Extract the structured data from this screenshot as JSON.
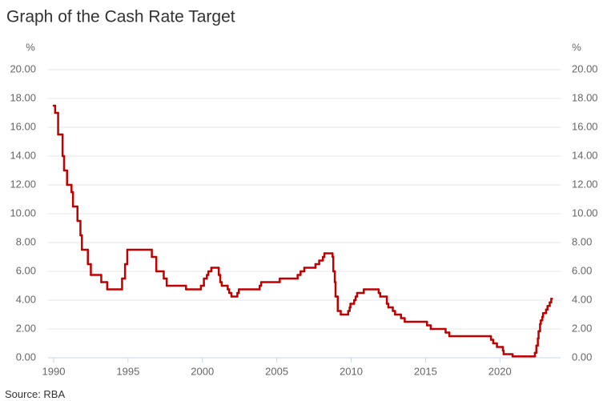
{
  "chart_data": {
    "type": "line",
    "drawstyle": "steps-post",
    "title": "Graph of the Cash Rate Target",
    "ylabel": "%",
    "y2label": "%",
    "source": "Source: RBA",
    "grid": true,
    "xlim": [
      1990,
      2023.7
    ],
    "xticks": [
      1990,
      1995,
      2000,
      2005,
      2010,
      2015,
      2020
    ],
    "ylim": [
      0,
      20
    ],
    "yticks": [
      {
        "value": 0,
        "label": "0.00"
      },
      {
        "value": 2,
        "label": "2.00"
      },
      {
        "value": 4,
        "label": "4.00"
      },
      {
        "value": 6,
        "label": "6.00"
      },
      {
        "value": 8,
        "label": "8.00"
      },
      {
        "value": 10,
        "label": "10.00"
      },
      {
        "value": 12,
        "label": "12.00"
      },
      {
        "value": 14,
        "label": "14.00"
      },
      {
        "value": 16,
        "label": "16.00"
      },
      {
        "value": 18,
        "label": "18.00"
      },
      {
        "value": 20,
        "label": "20.00"
      }
    ],
    "y2lim": [
      0,
      20
    ],
    "y2ticks": [
      {
        "value": 0,
        "label": "0.00"
      },
      {
        "value": 2,
        "label": "2.00"
      },
      {
        "value": 4,
        "label": "4.00"
      },
      {
        "value": 6,
        "label": "6.00"
      },
      {
        "value": 8,
        "label": "8.00"
      },
      {
        "value": 10,
        "label": "10.00"
      },
      {
        "value": 12,
        "label": "12.00"
      },
      {
        "value": 14,
        "label": "14.00"
      },
      {
        "value": 16,
        "label": "16.00"
      },
      {
        "value": 18,
        "label": "18.00"
      },
      {
        "value": 20,
        "label": "20.00"
      }
    ],
    "x": [
      1990.0,
      1990.1,
      1990.3,
      1990.6,
      1990.7,
      1990.9,
      1991.2,
      1991.3,
      1991.6,
      1991.8,
      1991.9,
      1992.3,
      1992.5,
      1993.2,
      1993.6,
      1994.6,
      1994.8,
      1994.95,
      1996.6,
      1996.9,
      1997.4,
      1997.6,
      1998.9,
      1999.9,
      2000.1,
      2000.3,
      2000.4,
      2000.6,
      2001.1,
      2001.2,
      2001.3,
      2001.7,
      2001.8,
      2001.95,
      2002.35,
      2002.45,
      2003.85,
      2003.95,
      2005.2,
      2006.4,
      2006.6,
      2006.85,
      2007.6,
      2007.85,
      2008.1,
      2008.2,
      2008.75,
      2008.8,
      2008.9,
      2008.95,
      2009.1,
      2009.3,
      2009.8,
      2009.9,
      2009.95,
      2010.2,
      2010.3,
      2010.4,
      2010.85,
      2011.85,
      2011.95,
      2012.4,
      2012.5,
      2012.8,
      2012.95,
      2013.35,
      2013.6,
      2015.1,
      2015.35,
      2016.35,
      2016.6,
      2019.4,
      2019.55,
      2019.8,
      2020.2,
      2020.25,
      2020.85,
      2022.35,
      2022.45,
      2022.55,
      2022.6,
      2022.7,
      2022.75,
      2022.85,
      2022.9,
      2023.1,
      2023.2,
      2023.35,
      2023.45
    ],
    "series": [
      {
        "name": "Cash Rate Target",
        "color": "#c00000",
        "values": [
          17.5,
          17.0,
          15.5,
          14.0,
          13.0,
          12.0,
          11.5,
          10.5,
          9.5,
          8.5,
          7.5,
          6.5,
          5.75,
          5.25,
          4.75,
          5.5,
          6.5,
          7.5,
          7.0,
          6.0,
          5.5,
          5.0,
          4.75,
          5.0,
          5.5,
          5.75,
          6.0,
          6.25,
          5.75,
          5.25,
          5.0,
          4.75,
          4.5,
          4.25,
          4.5,
          4.75,
          5.0,
          5.25,
          5.5,
          5.75,
          6.0,
          6.25,
          6.5,
          6.75,
          7.0,
          7.25,
          7.0,
          6.0,
          5.25,
          4.25,
          3.25,
          3.0,
          3.25,
          3.5,
          3.75,
          4.0,
          4.25,
          4.5,
          4.75,
          4.5,
          4.25,
          3.75,
          3.5,
          3.25,
          3.0,
          2.75,
          2.5,
          2.25,
          2.0,
          1.75,
          1.5,
          1.25,
          1.0,
          0.75,
          0.5,
          0.25,
          0.1,
          0.35,
          0.85,
          1.35,
          1.85,
          2.35,
          2.6,
          2.85,
          3.1,
          3.35,
          3.6,
          3.85,
          4.1
        ]
      }
    ]
  }
}
